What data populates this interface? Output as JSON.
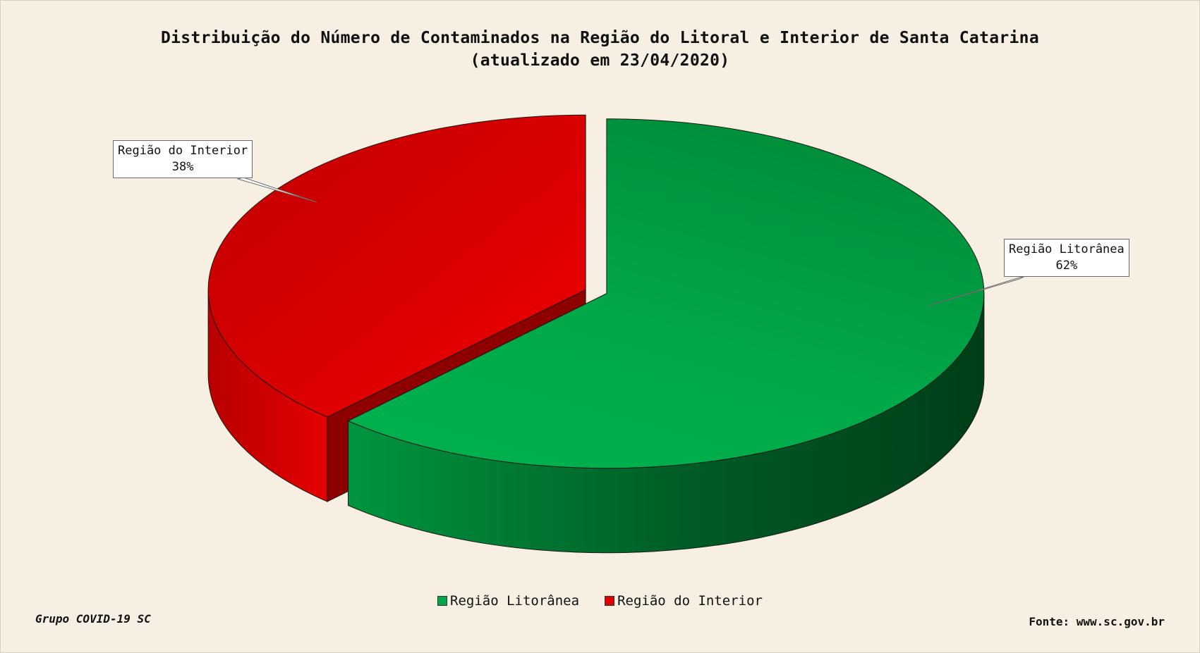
{
  "title_line1": "Distribuição do Número de Contaminados na Região do Litoral e Interior de Santa Catarina",
  "title_line2": "(atualizado em 23/04/2020)",
  "chart_data": {
    "type": "pie",
    "title": "Distribuição do Número de Contaminados na Região do Litoral e Interior de Santa Catarina (atualizado em 23/04/2020)",
    "categories": [
      "Região Litorânea",
      "Região do Interior"
    ],
    "values": [
      62,
      38
    ],
    "value_labels": [
      "62%",
      "38%"
    ],
    "colors": [
      "#00a64a",
      "#e00000"
    ],
    "style": "3d-exploded",
    "legend_position": "bottom"
  },
  "callouts": {
    "litoral": {
      "name": "Região Litorânea",
      "pct": "62%"
    },
    "interior": {
      "name": "Região do Interior",
      "pct": "38%"
    }
  },
  "legend": {
    "litoral": "Região Litorânea",
    "interior": "Região do Interior"
  },
  "footer": {
    "left": "Grupo COVID-19 SC",
    "right": "Fonte: www.sc.gov.br"
  }
}
